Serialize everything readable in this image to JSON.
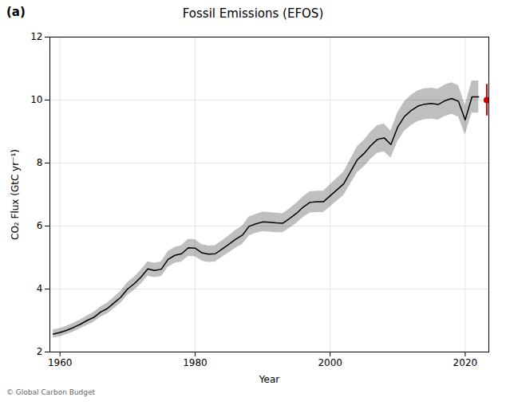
{
  "chart_data": {
    "type": "line",
    "title": "Fossil Emissions (EFOS)",
    "xlabel": "Year",
    "ylabel": "CO₂ Flux (GtC yr⁻¹)",
    "annotations": [
      "(a)",
      "© Global Carbon Budget"
    ],
    "x": [
      1959,
      1960,
      1961,
      1962,
      1963,
      1964,
      1965,
      1966,
      1967,
      1968,
      1969,
      1970,
      1971,
      1972,
      1973,
      1974,
      1975,
      1976,
      1977,
      1978,
      1979,
      1980,
      1981,
      1982,
      1983,
      1984,
      1985,
      1986,
      1987,
      1988,
      1989,
      1990,
      1991,
      1992,
      1993,
      1994,
      1995,
      1996,
      1997,
      1998,
      1999,
      2000,
      2001,
      2002,
      2003,
      2004,
      2005,
      2006,
      2007,
      2008,
      2009,
      2010,
      2011,
      2012,
      2013,
      2014,
      2015,
      2016,
      2017,
      2018,
      2019,
      2020,
      2021,
      2022
    ],
    "values": [
      2.57,
      2.62,
      2.69,
      2.78,
      2.88,
      3.0,
      3.1,
      3.27,
      3.38,
      3.56,
      3.74,
      4.0,
      4.17,
      4.38,
      4.64,
      4.59,
      4.63,
      4.94,
      5.07,
      5.12,
      5.31,
      5.3,
      5.15,
      5.11,
      5.12,
      5.27,
      5.42,
      5.58,
      5.71,
      5.99,
      6.07,
      6.13,
      6.12,
      6.1,
      6.09,
      6.24,
      6.4,
      6.6,
      6.75,
      6.77,
      6.77,
      6.96,
      7.15,
      7.34,
      7.72,
      8.1,
      8.3,
      8.55,
      8.75,
      8.8,
      8.59,
      9.14,
      9.48,
      9.67,
      9.81,
      9.87,
      9.89,
      9.86,
      9.98,
      10.05,
      9.96,
      9.37,
      10.1,
      10.1
    ],
    "uncertainty": [
      0.13,
      0.13,
      0.13,
      0.14,
      0.14,
      0.15,
      0.16,
      0.16,
      0.17,
      0.18,
      0.19,
      0.2,
      0.21,
      0.22,
      0.23,
      0.23,
      0.23,
      0.25,
      0.25,
      0.26,
      0.27,
      0.27,
      0.26,
      0.26,
      0.26,
      0.26,
      0.27,
      0.28,
      0.29,
      0.3,
      0.3,
      0.31,
      0.31,
      0.31,
      0.3,
      0.31,
      0.32,
      0.33,
      0.34,
      0.34,
      0.34,
      0.35,
      0.36,
      0.37,
      0.39,
      0.41,
      0.42,
      0.43,
      0.44,
      0.44,
      0.43,
      0.46,
      0.47,
      0.48,
      0.49,
      0.49,
      0.49,
      0.49,
      0.5,
      0.5,
      0.5,
      0.47,
      0.51,
      0.51
    ],
    "color": "#000000",
    "errorbar": {
      "x": 2023.2,
      "y": 10.0,
      "yerr": 0.5,
      "color": "#cc0000"
    },
    "xlim": [
      1958.5,
      2023.5
    ],
    "ylim": [
      2,
      12
    ],
    "xticks": [
      1960,
      1980,
      2000,
      2020
    ],
    "yticks": [
      2,
      4,
      6,
      8,
      10,
      12
    ],
    "grid": true
  }
}
